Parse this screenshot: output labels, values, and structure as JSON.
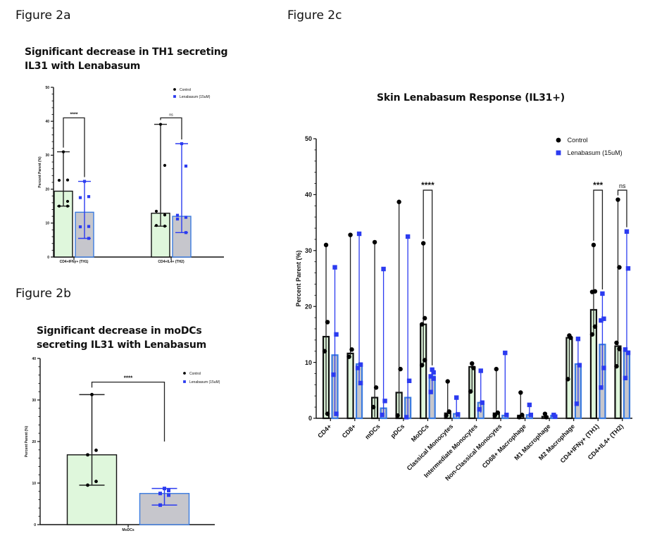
{
  "figures": {
    "a": {
      "label": "Figure 2a",
      "title_line1": "Significant decrease in TH1  secreting",
      "title_line2": "IL31 with Lenabasum"
    },
    "b": {
      "label": "Figure 2b",
      "title_line1": "Significant decrease in moDCs",
      "title_line2": "secreting IL31 with Lenabasum"
    },
    "c": {
      "label": "Figure 2c",
      "title": "Skin Lenabasum Response (IL31+)"
    }
  },
  "colors": {
    "control": "#000000",
    "lenabasum": "#2b3bf0",
    "control_fill": "#dff7dc",
    "lenabasum_fill": "#c6c6cc",
    "lenabasum_edge": "#3a7be0"
  },
  "chart_data": [
    {
      "id": "fig2a",
      "type": "bar",
      "title": "Significant decrease in TH1 secreting IL31 with Lenabasum",
      "xlabel": "",
      "ylabel": "Percent Parent (%)",
      "ylim": [
        0,
        50
      ],
      "yticks": [
        0,
        10,
        20,
        30,
        40,
        50
      ],
      "legend": {
        "position": "top-right",
        "entries": [
          "Control",
          "Lenabasum (15uM)"
        ]
      },
      "categories": [
        "CD4+IFNy+ (TH1)",
        "CD4+IL4+ (TH2)"
      ],
      "series": [
        {
          "name": "Control",
          "values": [
            19.4,
            12.9
          ],
          "points": [
            [
              31.0,
              22.7,
              22.6,
              16.4,
              15.0,
              15.0
            ],
            [
              39.1,
              27.0,
              13.5,
              12.4,
              9.3,
              9.1
            ]
          ],
          "range": [
            [
              15.0,
              31.0
            ],
            [
              9.1,
              39.1
            ]
          ]
        },
        {
          "name": "Lenabasum (15uM)",
          "values": [
            13.2,
            12.0
          ],
          "points": [
            [
              22.3,
              17.8,
              17.5,
              9.0,
              8.9,
              5.5
            ],
            [
              33.4,
              26.8,
              12.3,
              11.7,
              11.2,
              7.2
            ]
          ],
          "range": [
            [
              5.5,
              22.3
            ],
            [
              7.2,
              33.4
            ]
          ]
        }
      ],
      "annotations": [
        {
          "category": "CD4+IFNy+ (TH1)",
          "text": "****"
        },
        {
          "category": "CD4+IL4+ (TH2)",
          "text": "ns"
        }
      ]
    },
    {
      "id": "fig2b",
      "type": "bar",
      "title": "Significant decrease in moDCs secreting IL31 with Lenabasum",
      "xlabel": "",
      "ylabel": "Percent Parent (%)",
      "ylim": [
        0,
        40
      ],
      "yticks": [
        0,
        10,
        20,
        30,
        40
      ],
      "legend": {
        "position": "top-right",
        "entries": [
          "Control",
          "Lenabasum (15uM)"
        ]
      },
      "categories": [
        "MoDCs"
      ],
      "series": [
        {
          "name": "Control",
          "values": [
            16.8
          ],
          "points": [
            [
              31.3,
              17.9,
              16.8,
              10.4,
              9.5
            ]
          ],
          "range": [
            [
              9.5,
              31.3
            ]
          ]
        },
        {
          "name": "Lenabasum (15uM)",
          "values": [
            7.5
          ],
          "points": [
            [
              8.7,
              8.2,
              7.5,
              7.1,
              4.7
            ]
          ],
          "range": [
            [
              4.7,
              8.7
            ]
          ]
        }
      ],
      "annotations": [
        {
          "category": "MoDCs",
          "text": "****"
        }
      ]
    },
    {
      "id": "fig2c",
      "type": "bar",
      "title": "Skin Lenabasum Response (IL31+)",
      "xlabel": "",
      "ylabel": "Percent Parent (%)",
      "ylim": [
        0,
        50
      ],
      "yticks": [
        0,
        10,
        20,
        30,
        40,
        50
      ],
      "legend": {
        "position": "top-right",
        "entries": [
          "Control",
          "Lenabasum (15uM)"
        ]
      },
      "categories": [
        "CD4+",
        "CD8+",
        "mDCs",
        "pDCs",
        "MoDCs",
        "Classical Monocytes",
        "Intermediate Monocytes",
        "Non-Classical Monocytes",
        "CD68+ Macrophage",
        "M1 Macrophage",
        "M2 Macrophage",
        "CD4+IFNy+ (TH1)",
        "CD4+IL4+ (TH2)"
      ],
      "series": [
        {
          "name": "Control",
          "values": [
            14.6,
            11.6,
            3.7,
            4.6,
            16.8,
            0.9,
            9.2,
            0.9,
            0.5,
            0.3,
            14.4,
            19.4,
            12.9
          ],
          "points": [
            [
              31.0,
              17.2,
              12.0,
              0.8
            ],
            [
              32.8,
              12.3,
              11.0
            ],
            [
              31.5,
              5.5,
              2.0
            ],
            [
              38.7,
              8.8,
              0.5
            ],
            [
              31.3,
              17.9,
              16.8,
              10.4,
              9.5
            ],
            [
              6.6,
              1.2,
              0.5
            ],
            [
              9.8,
              9.0,
              4.8
            ],
            [
              8.8,
              1.0,
              0.5
            ],
            [
              4.6,
              0.6,
              0.2
            ],
            [
              0.8,
              0.2
            ],
            [
              14.8,
              14.4,
              7.0
            ],
            [
              31.0,
              22.7,
              22.6,
              16.4,
              15.0
            ],
            [
              39.1,
              27.0,
              13.5,
              12.4,
              9.3
            ]
          ],
          "range": [
            [
              0.8,
              31.0
            ],
            [
              11.0,
              32.8
            ],
            [
              0.2,
              31.5
            ],
            [
              0.2,
              38.7
            ],
            [
              9.5,
              31.3
            ],
            [
              0.3,
              6.6
            ],
            [
              4.8,
              9.8
            ],
            [
              0.3,
              8.8
            ],
            [
              0.1,
              4.6
            ],
            [
              0.1,
              0.8
            ],
            [
              7.0,
              14.8
            ],
            [
              15.0,
              31.0
            ],
            [
              9.1,
              39.1
            ]
          ]
        },
        {
          "name": "Lenabasum (15uM)",
          "values": [
            11.3,
            9.7,
            1.8,
            3.7,
            7.5,
            0.8,
            2.8,
            0.5,
            0.6,
            0.5,
            9.7,
            13.2,
            12.0
          ],
          "points": [
            [
              27.0,
              15.0,
              7.8,
              0.8
            ],
            [
              33.0,
              9.6,
              9.0,
              6.3
            ],
            [
              26.7,
              3.1,
              0.6
            ],
            [
              32.5,
              6.7,
              0.2
            ],
            [
              8.7,
              8.2,
              7.5,
              7.1,
              4.7
            ],
            [
              3.7,
              0.7
            ],
            [
              8.5,
              2.8,
              1.6
            ],
            [
              11.7,
              0.6
            ],
            [
              2.4,
              0.6
            ],
            [
              0.6,
              0.3
            ],
            [
              14.2,
              9.5,
              2.6
            ],
            [
              22.3,
              17.8,
              17.5,
              9.0,
              5.5
            ],
            [
              33.4,
              26.8,
              12.3,
              11.7,
              7.2
            ]
          ],
          "range": [
            [
              0.8,
              27.0
            ],
            [
              6.3,
              33.0
            ],
            [
              0.3,
              26.7
            ],
            [
              0.1,
              32.5
            ],
            [
              4.7,
              8.7
            ],
            [
              0.2,
              3.7
            ],
            [
              1.0,
              8.5
            ],
            [
              0.2,
              11.7
            ],
            [
              0.2,
              2.4
            ],
            [
              0.1,
              0.6
            ],
            [
              2.6,
              14.2
            ],
            [
              5.5,
              22.3
            ],
            [
              7.2,
              33.4
            ]
          ]
        }
      ],
      "annotations": [
        {
          "category": "MoDCs",
          "text": "****"
        },
        {
          "category": "CD4+IFNy+ (TH1)",
          "text": "***"
        },
        {
          "category": "CD4+IL4+ (TH2)",
          "text": "ns"
        }
      ]
    }
  ]
}
